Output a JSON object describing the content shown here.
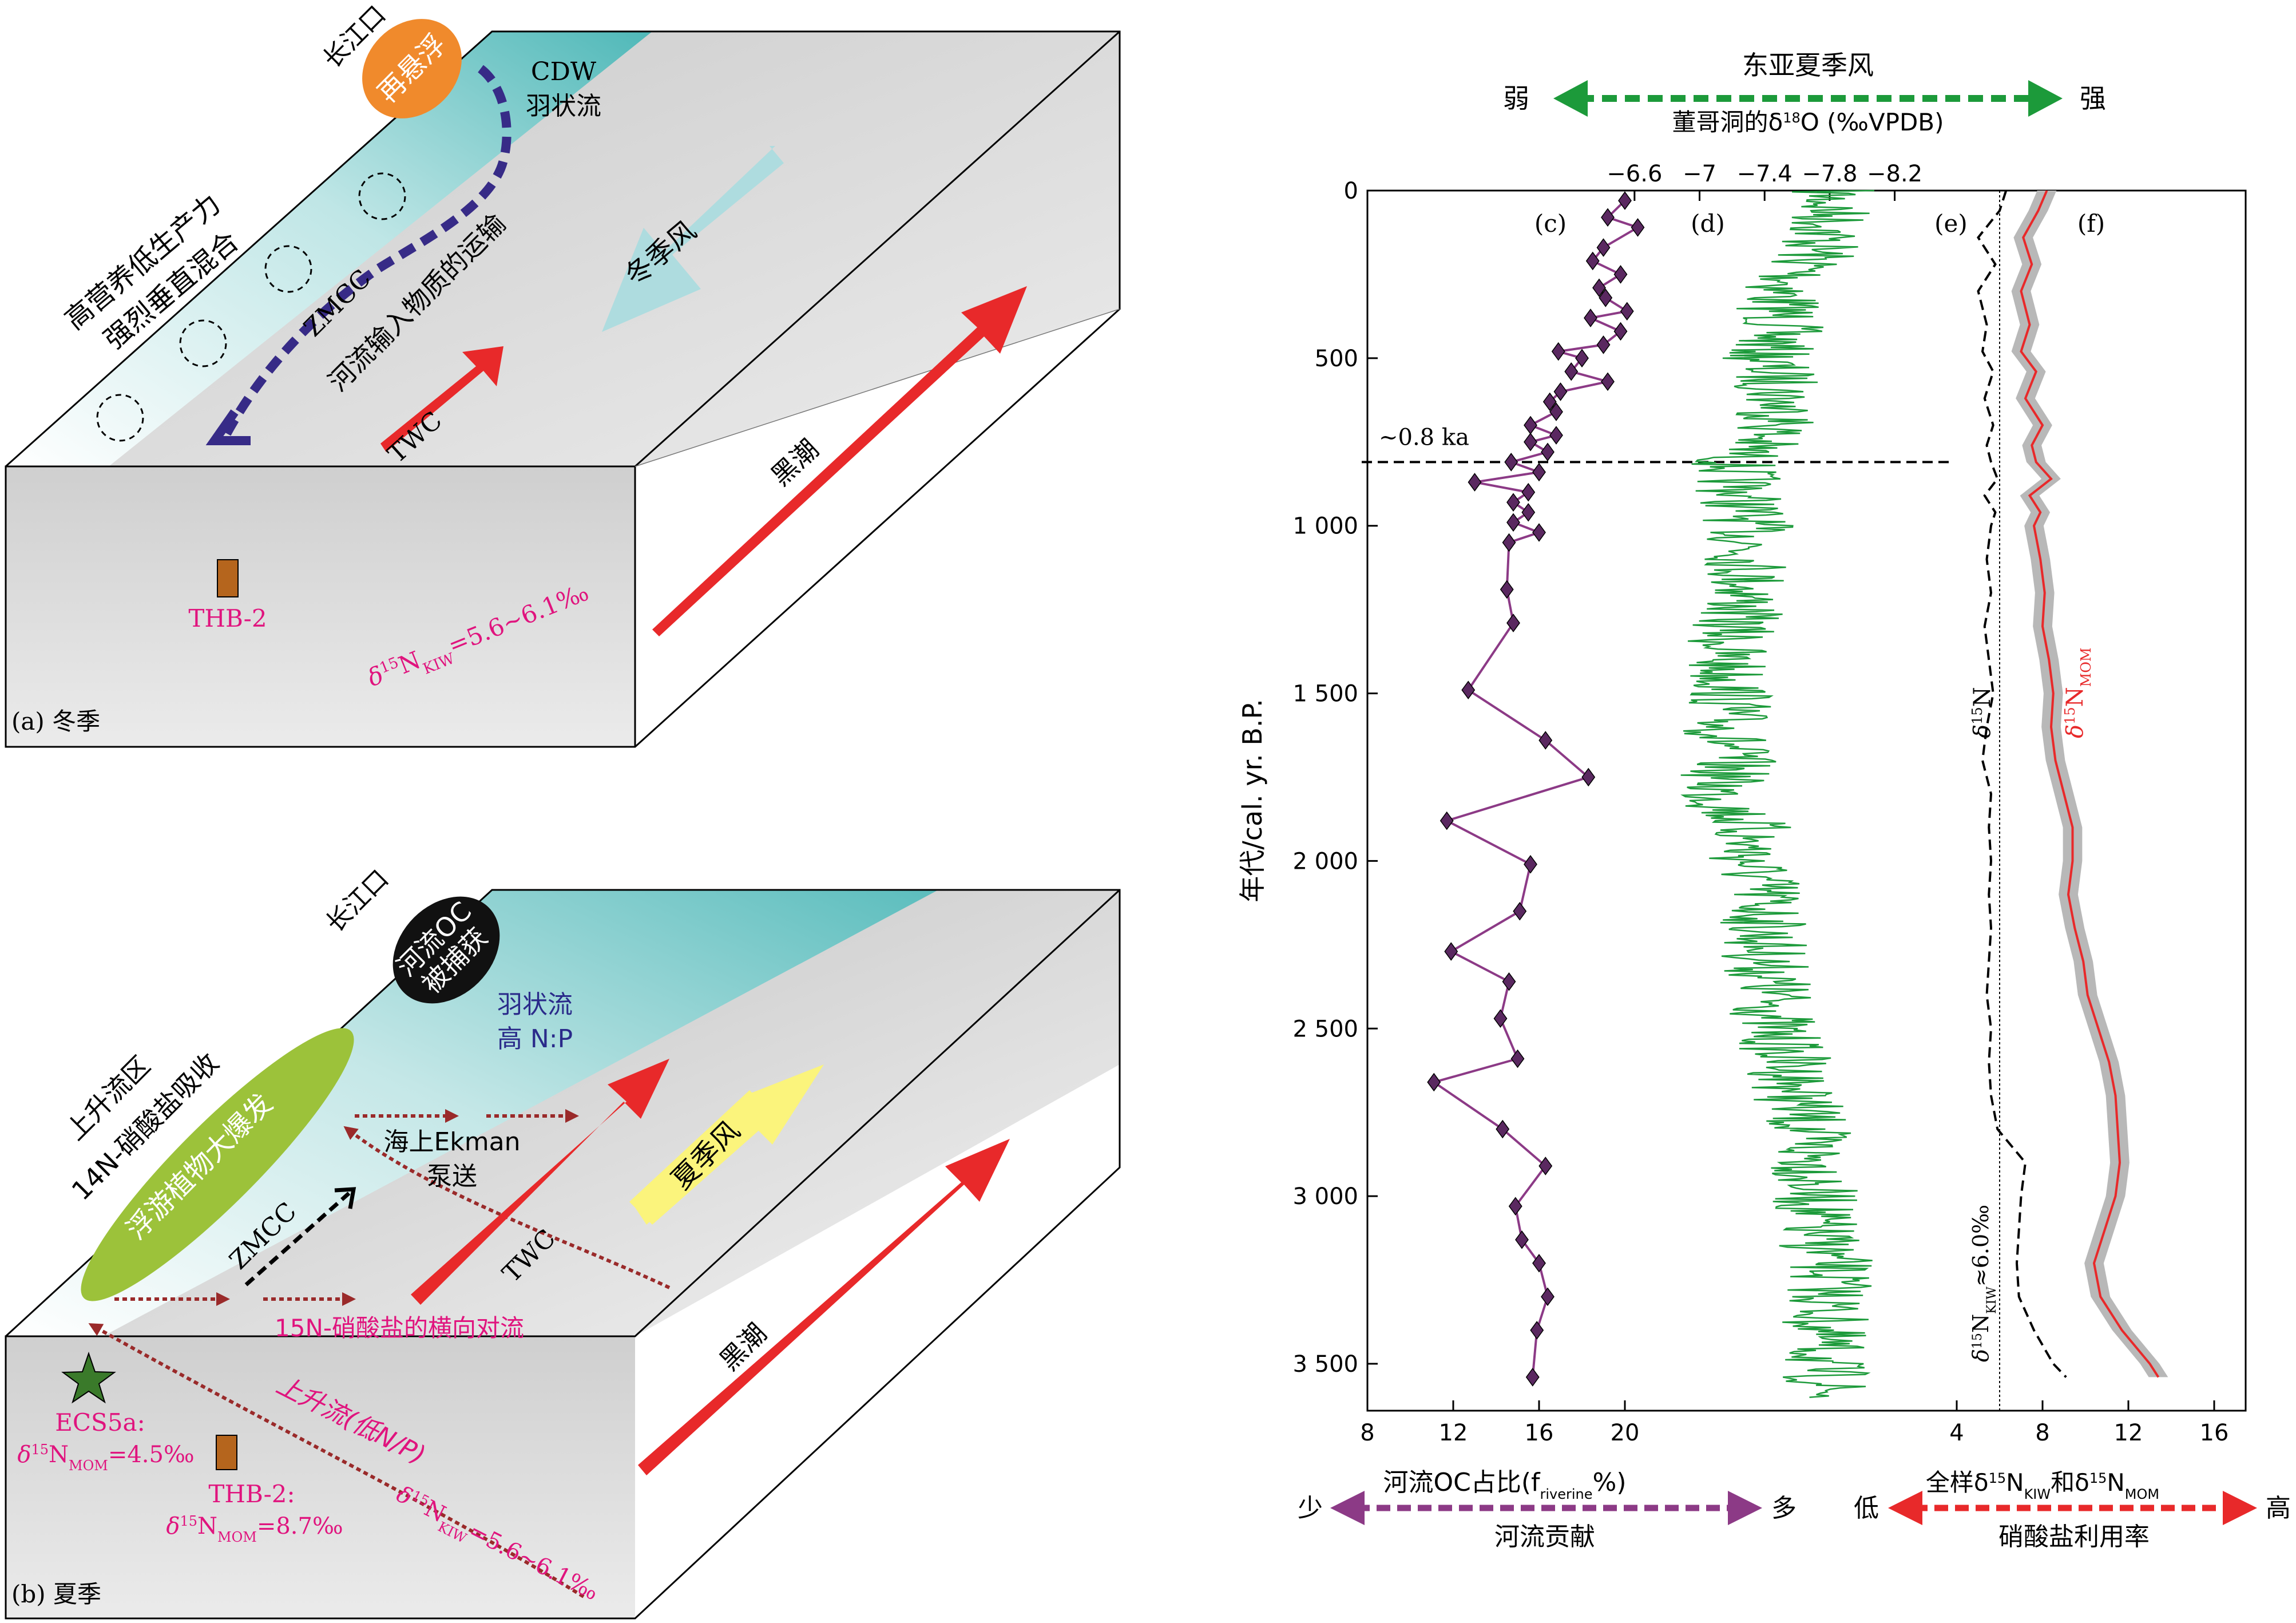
{
  "colors": {
    "teal": "#4fb8b8",
    "estuary_orange": "#f08a2c",
    "bloom_green": "#9cc23a",
    "kuroshio_red": "#e8292a",
    "summer_wind_yellow": "#fbf47c",
    "winter_wind_cyan": "#a9dcdf",
    "plume_dark_blue": "#372b87",
    "magenta_text": "#e0147e",
    "brown_text": "#9a2a2a",
    "purple_series": "#8c3a86",
    "green_series": "#1c9a3a",
    "grey_band": "#b8b8b8"
  },
  "panel_a": {
    "label": "(a) 冬季",
    "estuary": "长江口",
    "resuspension": "再悬浮",
    "cdw_line1": "CDW",
    "cdw_line2": "羽状流",
    "mixing_line1": "高营养低生产力",
    "mixing_line2": "强烈垂直混合",
    "zmcc": "ZMCC",
    "river_transport": "河流输入物质的运输",
    "twc": "TWC",
    "winter_wind": "冬季风",
    "kuroshio": "黑潮",
    "site": "THB-2",
    "kiw_prefix": "δ",
    "kiw_sup": "15",
    "kiw_n": "N",
    "kiw_sub": "KIW",
    "kiw_value": "=5.6~6.1‰"
  },
  "panel_b": {
    "label": "(b) 夏季",
    "estuary": "长江口",
    "oc_capture_line1": "河流OC",
    "oc_capture_line2": "被捕获",
    "plume_line1": "羽状流",
    "plume_line2": "高 N:P",
    "bloom": "浮游植物大爆发",
    "upwelling_line1": "上升流区",
    "upwelling_line2": "14N-硝酸盐吸收",
    "ekman_line1": "海上Ekman",
    "ekman_line2": "泵送",
    "summer_wind": "夏季风",
    "zmcc": "ZMCC",
    "twc": "TWC",
    "kuroshio": "黑潮",
    "lateral_advection": "15N-硝酸盐的横向对流",
    "upwelling_flow": "上升流(低N/P)",
    "ecs_site": "ECS5a:",
    "ecs_value": "=4.5‰",
    "thb_site": "THB-2:",
    "thb_value": "=8.7‰",
    "mom_sub": "MOM",
    "kiw_value": "=5.6~6.1‰",
    "kiw_sub": "KIW"
  },
  "chart_data": {
    "type": "line",
    "ylabel": "年代/cal. yr. B.P.",
    "ylim": [
      0,
      3600
    ],
    "y_ticks": [
      0,
      500,
      1000,
      1500,
      2000,
      2500,
      3000,
      3500
    ],
    "y_tick_labels": [
      "0",
      "500",
      "1 000",
      "1 500",
      "2 000",
      "2 500",
      "3 000",
      "3 500"
    ],
    "bottom_x_ticks": [
      8,
      12,
      16,
      20,
      4,
      8,
      12,
      16
    ],
    "top_axis": {
      "ticks": [
        -6.6,
        -7,
        -7.4,
        -7.8,
        -8.2
      ],
      "tick_labels": [
        "−6.6",
        "−7",
        "−7.4",
        "−7.8",
        "−8.2"
      ],
      "label_prefix": "董哥洞的δ",
      "label_sup": "18",
      "label_suffix": "O (‰VPDB)",
      "monsoon_title": "东亚夏季风",
      "weak": "弱",
      "strong": "强"
    },
    "bottom_left": {
      "title": "河流OC占比(f",
      "title_sub": "riverine",
      "title_end": "%)",
      "less": "少",
      "more": "多",
      "caption": "河流贡献"
    },
    "bottom_right": {
      "title_a": "全样δ",
      "title_sup1": "15",
      "title_b": "N",
      "title_sub1": "KIW",
      "title_c": "和δ",
      "title_sup2": "15",
      "title_d": "N",
      "title_sub2": "MOM",
      "low": "低",
      "high": "高",
      "caption": "硝酸盐利用率"
    },
    "panel_letters": [
      "(c)",
      "(d)",
      "(e)",
      "(f)"
    ],
    "event_label": "~0.8 ka",
    "event_age": 810,
    "kiw_ref_label": "δ15NKIW≈6.0‰",
    "kiw_ref_value": 6.0,
    "e_label": "δ15N",
    "f_label": "δ15NMOM",
    "series": [
      {
        "id": "c",
        "xlim": [
          8,
          24
        ],
        "ages": [
          30,
          80,
          110,
          170,
          210,
          250,
          290,
          320,
          360,
          380,
          420,
          460,
          480,
          500,
          540,
          570,
          600,
          630,
          660,
          700,
          730,
          750,
          780,
          810,
          840,
          870,
          900,
          930,
          960,
          990,
          1020,
          1050,
          1190,
          1290,
          1490,
          1640,
          1750,
          1880,
          2010,
          2150,
          2270,
          2360,
          2470,
          2590,
          2660,
          2800,
          2910,
          3030,
          3130,
          3200,
          3300,
          3400,
          3540
        ],
        "values": [
          20.0,
          19.2,
          20.6,
          19.0,
          18.5,
          19.8,
          18.8,
          19.1,
          20.1,
          18.4,
          19.8,
          19.0,
          16.9,
          18.0,
          17.5,
          19.2,
          17.0,
          16.5,
          16.8,
          15.6,
          16.8,
          15.6,
          16.4,
          14.7,
          16.0,
          13.0,
          15.5,
          14.8,
          15.5,
          14.8,
          16.0,
          14.6,
          14.5,
          14.8,
          12.7,
          16.3,
          18.3,
          11.7,
          15.6,
          15.1,
          11.9,
          14.6,
          14.2,
          15.0,
          11.1,
          14.3,
          16.3,
          14.9,
          15.2,
          16.0,
          16.4,
          15.9,
          15.7
        ]
      },
      {
        "id": "d",
        "name": "",
        "xlim": [
          -6.0,
          -8.4
        ],
        "ages": [
          0,
          100,
          200,
          300,
          400,
          500,
          600,
          700,
          810,
          900,
          1000,
          1100,
          1200,
          1300,
          1400,
          1500,
          1600,
          1700,
          1800,
          1900,
          2000,
          2100,
          2200,
          2300,
          2400,
          2500,
          2600,
          2700,
          2800,
          2900,
          3000,
          3100,
          3200,
          3300,
          3400,
          3500,
          3600
        ],
        "values": [
          -7.8,
          -7.8,
          -7.7,
          -7.5,
          -7.5,
          -7.4,
          -7.5,
          -7.5,
          -7.2,
          -7.25,
          -7.3,
          -7.3,
          -7.3,
          -7.2,
          -7.15,
          -7.2,
          -7.15,
          -7.2,
          -7.1,
          -7.3,
          -7.3,
          -7.4,
          -7.4,
          -7.4,
          -7.45,
          -7.45,
          -7.55,
          -7.6,
          -7.65,
          -7.7,
          -7.7,
          -7.7,
          -7.8,
          -7.8,
          -7.75,
          -7.75,
          -7.8
        ]
      },
      {
        "id": "e",
        "xlim": [
          4,
          16
        ],
        "ages": [
          0,
          60,
          140,
          220,
          300,
          400,
          480,
          540,
          620,
          700,
          760,
          810,
          860,
          910,
          960,
          1000,
          1100,
          1200,
          1300,
          1400,
          1500,
          1600,
          1700,
          1800,
          1900,
          2000,
          2100,
          2200,
          2300,
          2400,
          2500,
          2600,
          2700,
          2800,
          2900,
          3000,
          3100,
          3200,
          3300,
          3400,
          3500,
          3540
        ],
        "values": [
          6.3,
          6.0,
          5.0,
          5.8,
          5.0,
          5.4,
          5.2,
          5.7,
          5.3,
          5.7,
          5.4,
          5.6,
          5.9,
          5.3,
          5.8,
          5.6,
          5.4,
          5.6,
          5.3,
          5.5,
          5.7,
          5.4,
          5.2,
          5.6,
          5.5,
          5.6,
          5.5,
          5.6,
          5.5,
          5.4,
          5.6,
          5.5,
          5.6,
          5.9,
          7.2,
          7.0,
          6.9,
          6.8,
          6.9,
          7.6,
          8.5,
          9.1
        ]
      },
      {
        "id": "f",
        "xlim": [
          4,
          16
        ],
        "ages": [
          0,
          60,
          140,
          220,
          300,
          400,
          480,
          540,
          620,
          700,
          760,
          810,
          860,
          910,
          960,
          1000,
          1100,
          1200,
          1300,
          1400,
          1500,
          1600,
          1700,
          1800,
          1900,
          2000,
          2100,
          2200,
          2300,
          2400,
          2500,
          2600,
          2700,
          2800,
          2900,
          3000,
          3100,
          3200,
          3300,
          3400,
          3500,
          3540
        ],
        "values": [
          8.2,
          7.8,
          7.1,
          7.5,
          7.0,
          7.4,
          7.0,
          7.7,
          7.2,
          8.0,
          7.5,
          7.7,
          8.4,
          7.4,
          7.9,
          7.6,
          7.9,
          8.1,
          8.0,
          8.3,
          8.5,
          8.4,
          8.6,
          9.0,
          9.4,
          9.4,
          9.2,
          9.5,
          9.9,
          10.1,
          10.6,
          11.1,
          11.4,
          11.5,
          11.6,
          11.4,
          10.9,
          10.4,
          10.7,
          11.7,
          13.0,
          13.4
        ]
      }
    ]
  }
}
